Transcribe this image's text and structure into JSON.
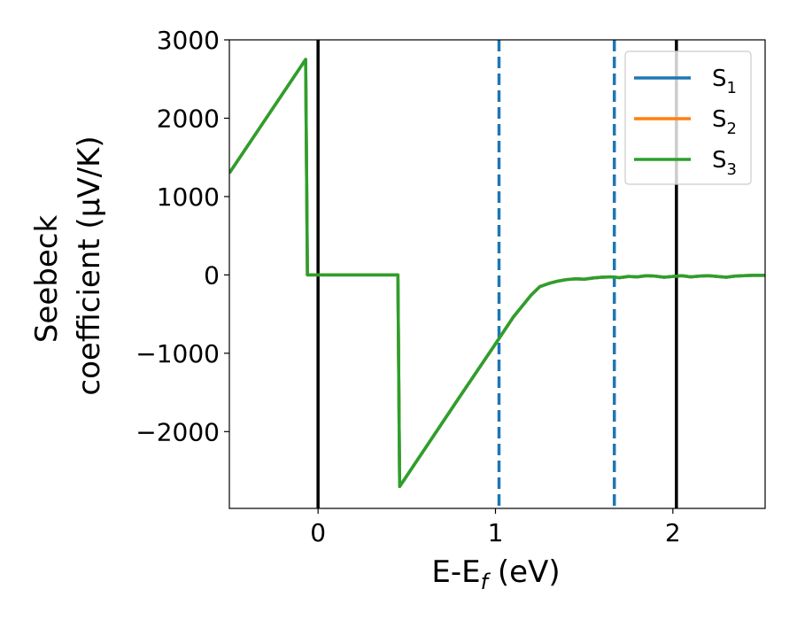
{
  "chart_data": {
    "type": "line",
    "xlabel": "E-E",
    "xlabel_sub": "f",
    "xlabel_unit": " (eV)",
    "ylabel_line1": "Seebeck",
    "ylabel_line2": "coefficient  (μV/K)",
    "xlim": [
      -0.5,
      2.52
    ],
    "ylim": [
      -2980,
      3000
    ],
    "xticks": [
      0,
      1,
      2
    ],
    "xtick_labels": [
      "0",
      "1",
      "2"
    ],
    "yticks": [
      3000,
      2000,
      1000,
      0,
      -1000,
      -2000
    ],
    "ytick_labels": [
      "3000",
      "2000",
      "1000",
      "0",
      "−1000",
      "−2000"
    ],
    "vlines": [
      {
        "x": 0.0,
        "style": "solid",
        "color": "#000000"
      },
      {
        "x": 2.02,
        "style": "solid",
        "color": "#000000"
      },
      {
        "x": 1.02,
        "style": "dashed",
        "color": "#1f77b4"
      },
      {
        "x": 1.67,
        "style": "dashed",
        "color": "#1f77b4"
      }
    ],
    "legend_position": "top-right",
    "series": [
      {
        "name": "S",
        "sub": "1",
        "color": "#1f77b4",
        "x": [
          -0.5,
          -0.07,
          -0.06,
          0.45,
          0.46,
          0.8,
          1.0,
          1.1,
          1.2,
          1.25,
          1.3,
          1.35,
          1.4,
          1.45,
          1.5,
          1.55,
          1.6,
          1.65,
          1.7,
          1.75,
          1.8,
          1.85,
          1.9,
          1.95,
          2.0,
          2.05,
          2.1,
          2.15,
          2.2,
          2.25,
          2.3,
          2.35,
          2.4,
          2.45,
          2.52
        ],
        "y": [
          1300,
          2750,
          0,
          0,
          -2700,
          -1550,
          -880,
          -540,
          -260,
          -150,
          -110,
          -80,
          -60,
          -50,
          -55,
          -40,
          -30,
          -25,
          -35,
          -20,
          -25,
          -10,
          -15,
          -30,
          -20,
          -10,
          -25,
          -15,
          -10,
          -20,
          -30,
          -15,
          -10,
          -5,
          -5
        ]
      },
      {
        "name": "S",
        "sub": "2",
        "color": "#ff7f0e",
        "x": [
          -0.5,
          -0.07,
          -0.06,
          0.45,
          0.46,
          0.8,
          1.0,
          1.1,
          1.2,
          1.25,
          1.3,
          1.35,
          1.4,
          1.45,
          1.5,
          1.55,
          1.6,
          1.65,
          1.7,
          1.75,
          1.8,
          1.85,
          1.9,
          1.95,
          2.0,
          2.05,
          2.1,
          2.15,
          2.2,
          2.25,
          2.3,
          2.35,
          2.4,
          2.45,
          2.52
        ],
        "y": [
          1300,
          2750,
          0,
          0,
          -2700,
          -1550,
          -880,
          -540,
          -260,
          -150,
          -110,
          -80,
          -60,
          -50,
          -55,
          -40,
          -30,
          -25,
          -35,
          -20,
          -25,
          -10,
          -15,
          -30,
          -20,
          -10,
          -25,
          -15,
          -10,
          -20,
          -30,
          -15,
          -10,
          -5,
          -5
        ]
      },
      {
        "name": "S",
        "sub": "3",
        "color": "#2ca02c",
        "x": [
          -0.5,
          -0.07,
          -0.06,
          0.45,
          0.46,
          0.8,
          1.0,
          1.1,
          1.2,
          1.25,
          1.3,
          1.35,
          1.4,
          1.45,
          1.5,
          1.55,
          1.6,
          1.65,
          1.7,
          1.75,
          1.8,
          1.85,
          1.9,
          1.95,
          2.0,
          2.05,
          2.1,
          2.15,
          2.2,
          2.25,
          2.3,
          2.35,
          2.4,
          2.45,
          2.52
        ],
        "y": [
          1300,
          2750,
          0,
          0,
          -2700,
          -1550,
          -880,
          -540,
          -260,
          -150,
          -110,
          -80,
          -60,
          -50,
          -55,
          -40,
          -30,
          -25,
          -35,
          -20,
          -25,
          -10,
          -15,
          -30,
          -20,
          -10,
          -25,
          -15,
          -10,
          -20,
          -30,
          -15,
          -10,
          -5,
          -5
        ]
      }
    ]
  }
}
